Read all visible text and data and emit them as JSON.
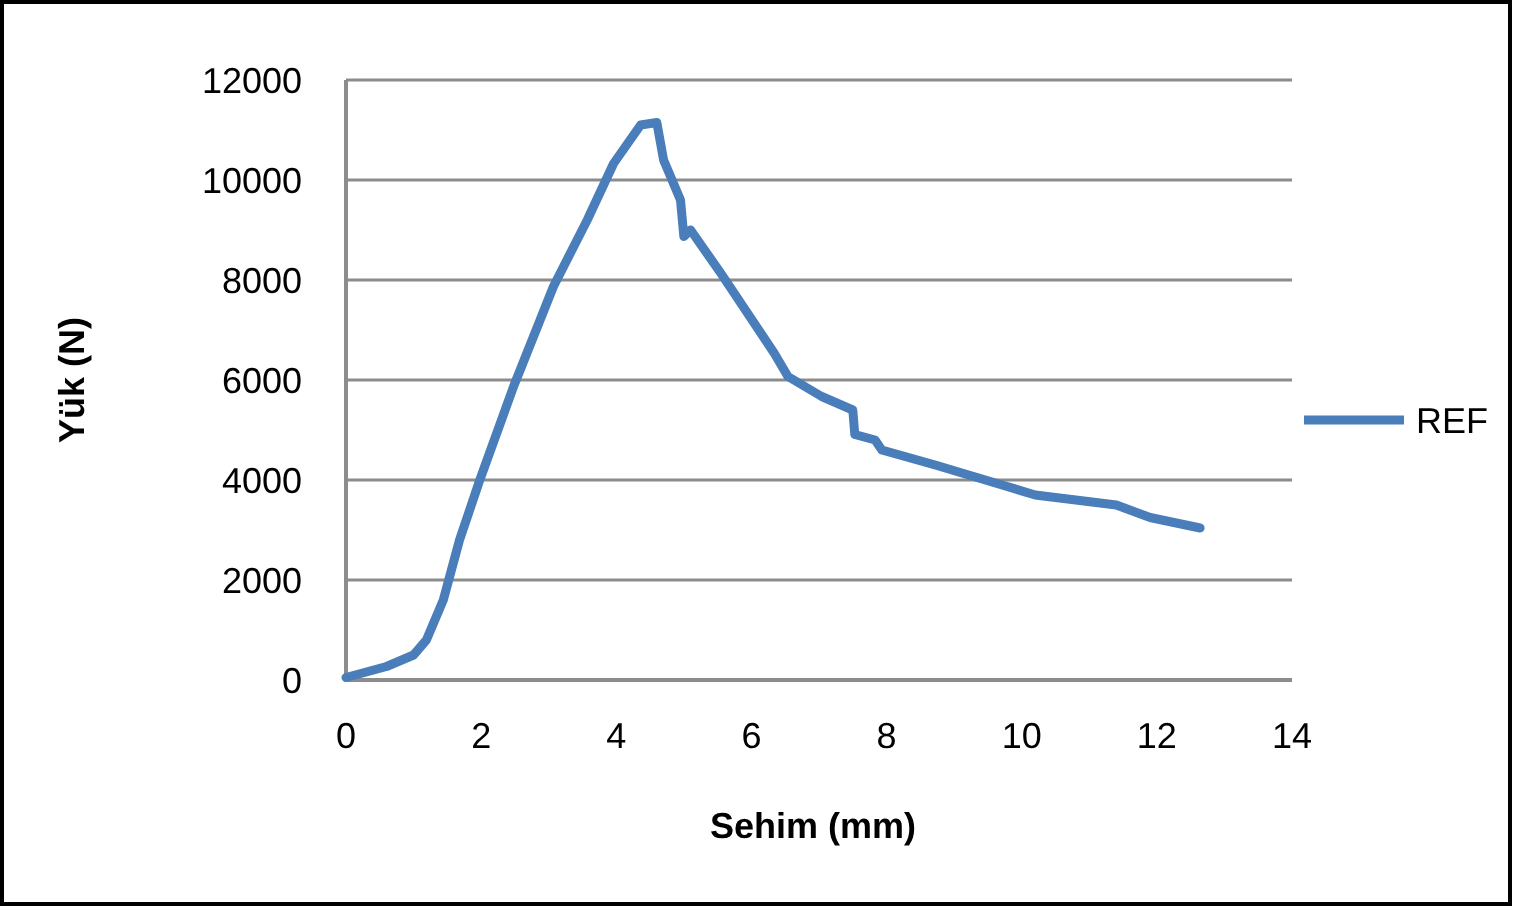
{
  "chart_data": {
    "type": "line",
    "xlabel": "Sehim (mm)",
    "ylabel": "Yük (N)",
    "xlim": [
      0,
      14
    ],
    "xticks": [
      0,
      2,
      4,
      6,
      8,
      10,
      12,
      14
    ],
    "ylim": [
      0,
      12000
    ],
    "yticks": [
      0,
      2000,
      4000,
      6000,
      8000,
      10000,
      12000
    ],
    "grid": "y",
    "legend": "right",
    "marker": "none",
    "line_style": "solid",
    "series": [
      {
        "name": "REF",
        "color": "#4a7ebb",
        "x": [
          0,
          0.6,
          1.0,
          1.19,
          1.44,
          1.68,
          1.98,
          2.48,
          3.07,
          3.57,
          3.96,
          4.36,
          4.6,
          4.7,
          4.95,
          5.0,
          5.1,
          5.55,
          6.34,
          6.54,
          7.04,
          7.5,
          7.53,
          7.83,
          7.93,
          8.72,
          9.71,
          10.2,
          11.4,
          11.9,
          12.64
        ],
        "values": [
          50,
          270,
          500,
          800,
          1600,
          2800,
          4000,
          5870,
          7870,
          9200,
          10330,
          11100,
          11150,
          10400,
          9600,
          8870,
          9000,
          8130,
          6530,
          6070,
          5670,
          5400,
          4910,
          4800,
          4600,
          4300,
          3900,
          3700,
          3500,
          3250,
          3040
        ]
      }
    ]
  }
}
